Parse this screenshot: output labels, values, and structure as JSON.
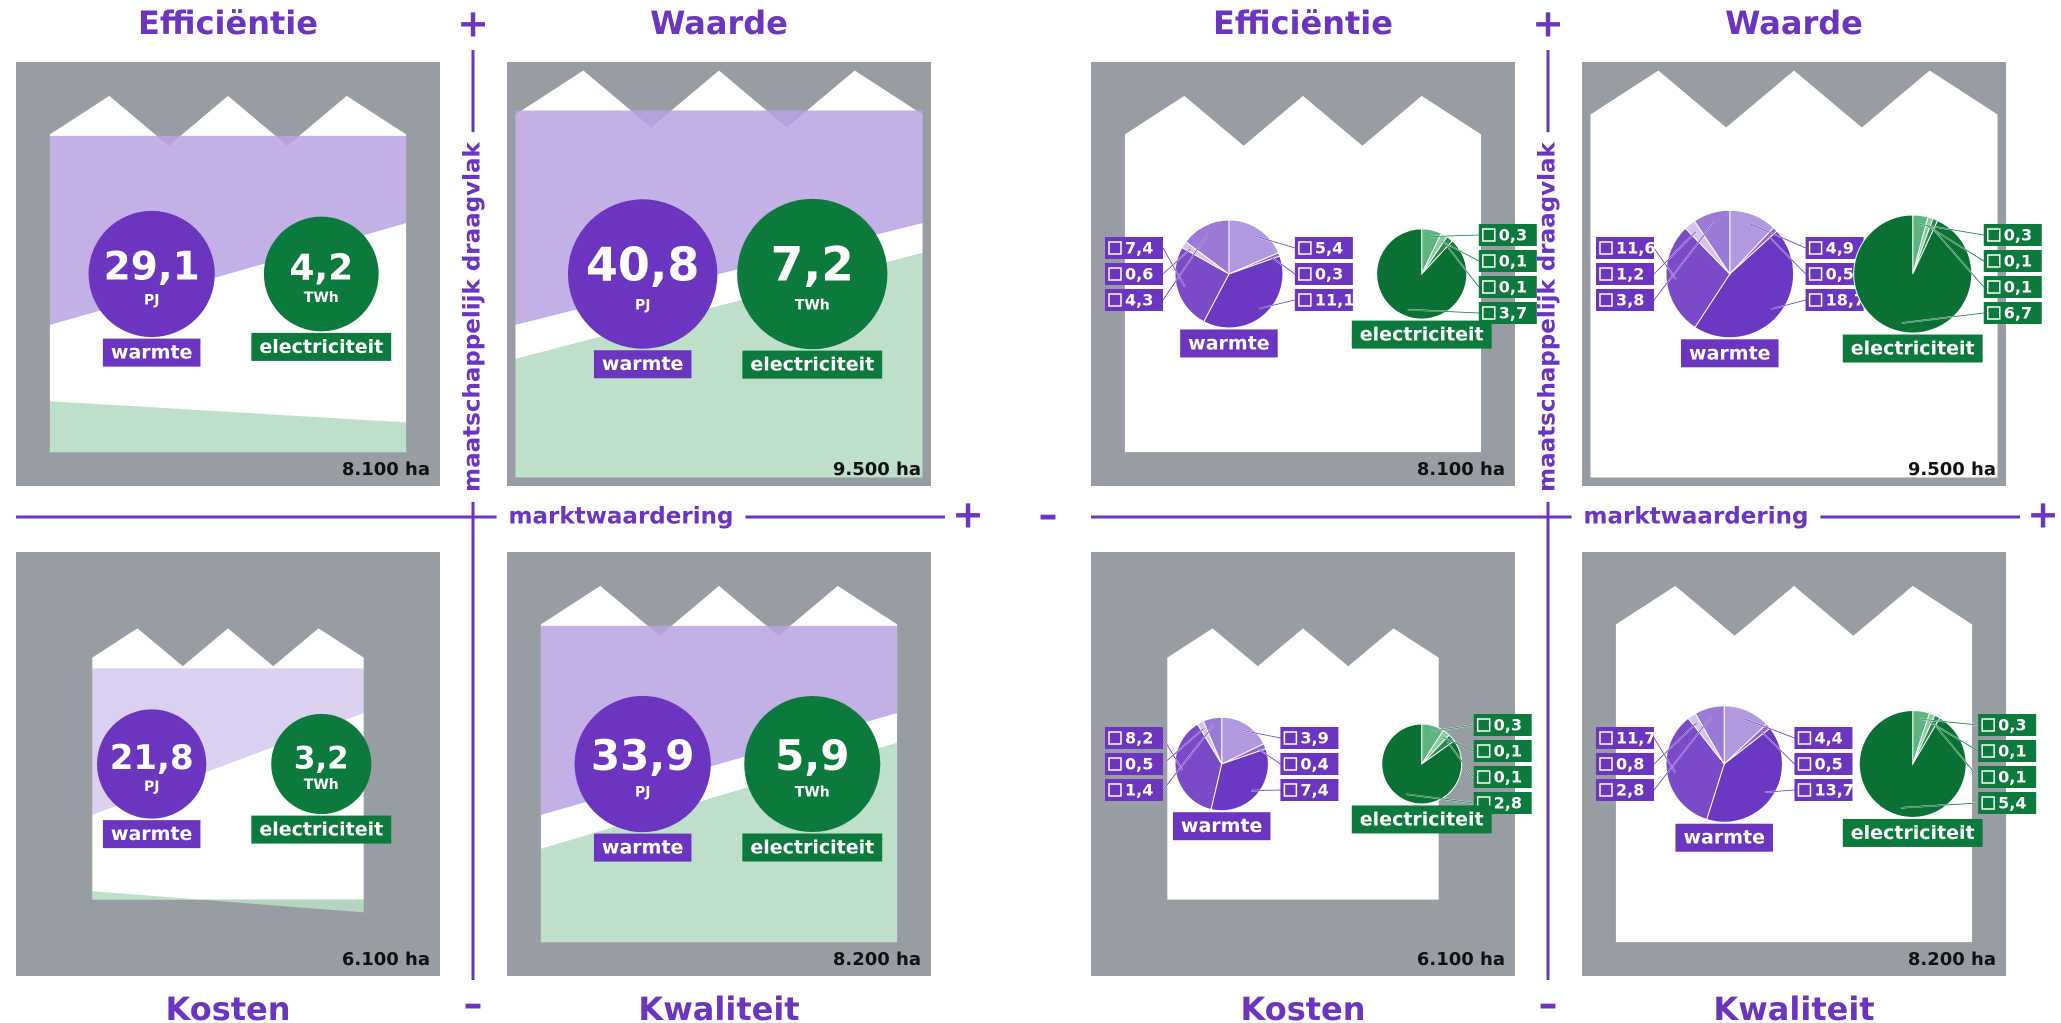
{
  "titles": [
    "Efficiëntie",
    "Waarde",
    "Kosten",
    "Kwaliteit"
  ],
  "signs": {
    "plus": "+",
    "minus": "–"
  },
  "axes": {
    "vertical": "maatschappelijk draagvlak",
    "horizontal": "marktwaardering"
  },
  "legend": {
    "heat": "warmte",
    "heat_unit": "PJ",
    "elec": "electriciteit",
    "elec_unit": "TWh"
  },
  "panels": [
    {
      "quadrants": [
        {
          "area": "8.100 ha",
          "heat": {
            "value": 29.1,
            "label": "29,1"
          },
          "elec": {
            "value": 4.2,
            "label": "4,2"
          }
        },
        {
          "area": "9.500 ha",
          "heat": {
            "value": 40.8,
            "label": "40,8"
          },
          "elec": {
            "value": 7.2,
            "label": "7,2"
          }
        },
        {
          "area": "6.100 ha",
          "heat": {
            "value": 21.8,
            "label": "21,8"
          },
          "elec": {
            "value": 3.2,
            "label": "3,2"
          }
        },
        {
          "area": "8.200 ha",
          "heat": {
            "value": 33.9,
            "label": "33,9"
          },
          "elec": {
            "value": 5.9,
            "label": "5,9"
          }
        }
      ]
    },
    {
      "quadrants": [
        {
          "area": "8.100 ha",
          "heat": [
            {
              "value": 5.4,
              "label": "5,4"
            },
            {
              "value": 0.3,
              "label": "0,3"
            },
            {
              "value": 11.1,
              "label": "11,1"
            },
            {
              "value": 7.4,
              "label": "7,4"
            },
            {
              "value": 0.6,
              "label": "0,6"
            },
            {
              "value": 4.3,
              "label": "4,3"
            }
          ],
          "elec": [
            {
              "value": 0.3,
              "label": "0,3"
            },
            {
              "value": 0.1,
              "label": "0,1"
            },
            {
              "value": 0.1,
              "label": "0,1"
            },
            {
              "value": 3.7,
              "label": "3,7"
            }
          ]
        },
        {
          "area": "9.500 ha",
          "heat": [
            {
              "value": 4.9,
              "label": "4,9"
            },
            {
              "value": 0.5,
              "label": "0,5"
            },
            {
              "value": 18.7,
              "label": "18,7"
            },
            {
              "value": 11.6,
              "label": "11,6"
            },
            {
              "value": 1.2,
              "label": "1,2"
            },
            {
              "value": 3.8,
              "label": "3,8"
            }
          ],
          "elec": [
            {
              "value": 0.3,
              "label": "0,3"
            },
            {
              "value": 0.1,
              "label": "0,1"
            },
            {
              "value": 0.1,
              "label": "0,1"
            },
            {
              "value": 6.7,
              "label": "6,7"
            }
          ]
        },
        {
          "area": "6.100 ha",
          "heat": [
            {
              "value": 3.9,
              "label": "3,9"
            },
            {
              "value": 0.4,
              "label": "0,4"
            },
            {
              "value": 7.4,
              "label": "7,4"
            },
            {
              "value": 8.2,
              "label": "8,2"
            },
            {
              "value": 0.5,
              "label": "0,5"
            },
            {
              "value": 1.4,
              "label": "1,4"
            }
          ],
          "elec": [
            {
              "value": 0.3,
              "label": "0,3"
            },
            {
              "value": 0.1,
              "label": "0,1"
            },
            {
              "value": 0.1,
              "label": "0,1"
            },
            {
              "value": 2.8,
              "label": "2,8"
            }
          ]
        },
        {
          "area": "8.200 ha",
          "heat": [
            {
              "value": 4.4,
              "label": "4,4"
            },
            {
              "value": 0.5,
              "label": "0,5"
            },
            {
              "value": 13.7,
              "label": "13,7"
            },
            {
              "value": 11.7,
              "label": "11,7"
            },
            {
              "value": 0.8,
              "label": "0,8"
            },
            {
              "value": 2.8,
              "label": "2,8"
            }
          ],
          "elec": [
            {
              "value": 0.3,
              "label": "0,3"
            },
            {
              "value": 0.1,
              "label": "0,1"
            },
            {
              "value": 0.1,
              "label": "0,1"
            },
            {
              "value": 5.4,
              "label": "5,4"
            }
          ]
        }
      ]
    }
  ]
}
